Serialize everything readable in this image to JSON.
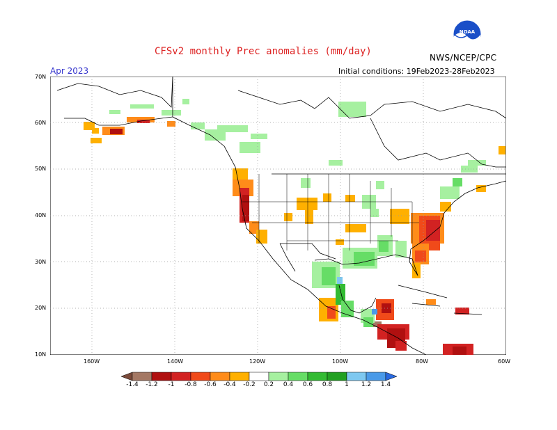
{
  "title": "CFSv2 monthly Prec anomalies (mm/day)",
  "period": "Apr 2023",
  "initial_conditions": "Initial conditions: 19Feb2023-28Feb2023",
  "agency": "NWS/NCEP/CPC",
  "logo_text": "NOAA",
  "lat_labels": [
    "70N",
    "60N",
    "50N",
    "40N",
    "30N",
    "20N",
    "10N"
  ],
  "lon_labels": [
    "160W",
    "140W",
    "120W",
    "100W",
    "80W",
    "60W"
  ],
  "colorbar": {
    "labels": [
      "-1.4",
      "-1.2",
      "-1",
      "-0.8",
      "-0.6",
      "-0.4",
      "-0.2",
      "0.2",
      "0.4",
      "0.6",
      "0.8",
      "1",
      "1.2",
      "1.4"
    ],
    "colors": [
      "#7a4a3a",
      "#a47864",
      "#b01010",
      "#d22222",
      "#f04a1a",
      "#ff8c1a",
      "#ffb000",
      "#ffffff",
      "#a6f0a0",
      "#66dd66",
      "#33bb33",
      "#22a022",
      "#7ec8f0",
      "#4a9ae8",
      "#2a6ae0"
    ]
  },
  "colors": {
    "title": "#dd2222",
    "period": "#3333cc",
    "grid": "#888888"
  }
}
